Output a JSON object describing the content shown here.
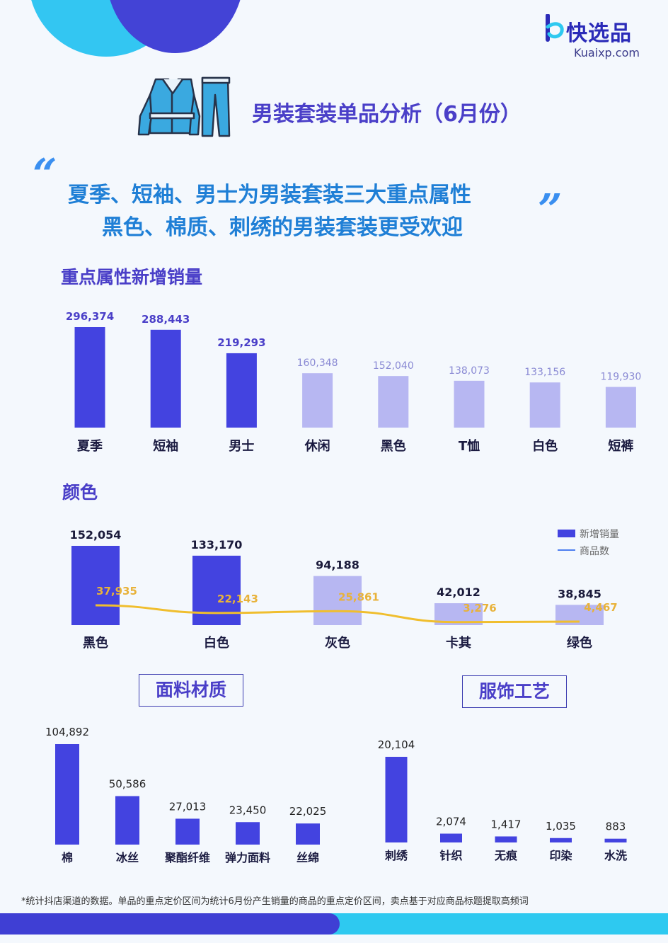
{
  "brand": {
    "name": "快选品",
    "url": "Kuaixp.com",
    "colors": {
      "primary": "#4343e0",
      "light": "#b7b7f2",
      "line": "#f0be2e",
      "headline": "#1f7fd6"
    }
  },
  "title": "男装套装单品分析（6月份）",
  "headline": {
    "line1": "夏季、短袖、男士为男装套装三大重点属性",
    "line2": "黑色、棉质、刺绣的男装套装更受欢迎",
    "open_quote": "“",
    "close_quote": "”"
  },
  "sections": {
    "attributes_title": "重点属性新增销量",
    "color_title": "颜色",
    "fabric_title": "面料材质",
    "craft_title": "服饰工艺"
  },
  "footnote": "*统计抖店渠道的数据。单品的重点定价区间为统计6月份产生销量的商品的重点定价区间，卖点基于对应商品标题提取高频词",
  "chart_data": [
    {
      "type": "bar",
      "title": "重点属性新增销量",
      "categories": [
        "夏季",
        "短袖",
        "男士",
        "休闲",
        "黑色",
        "T恤",
        "白色",
        "短裤"
      ],
      "values": [
        296374,
        288443,
        219293,
        160348,
        152040,
        138073,
        133156,
        119930
      ],
      "labels": [
        "296,374",
        "288,443",
        "219,293",
        "160,348",
        "152,040",
        "138,073",
        "133,156",
        "119,930"
      ],
      "highlight_count": 3,
      "ylim": [
        0,
        300000
      ]
    },
    {
      "type": "bar",
      "title": "颜色",
      "categories": [
        "黑色",
        "白色",
        "灰色",
        "卡其",
        "绿色"
      ],
      "series": [
        {
          "name": "新增销量",
          "type": "bar",
          "values": [
            152054,
            133170,
            94188,
            42012,
            38845
          ],
          "labels": [
            "152,054",
            "133,170",
            "94,188",
            "42,012",
            "38,845"
          ]
        },
        {
          "name": "商品数",
          "type": "line",
          "values": [
            37935,
            22143,
            25861,
            3276,
            4467
          ],
          "labels": [
            "37,935",
            "22,143",
            "25,861",
            "3,276",
            "4,467"
          ]
        }
      ],
      "highlight_count": 2,
      "legend": "top-right"
    },
    {
      "type": "bar",
      "title": "面料材质",
      "categories": [
        "棉",
        "冰丝",
        "聚酯纤维",
        "弹力面料",
        "丝绵"
      ],
      "values": [
        104892,
        50586,
        27013,
        23450,
        22025
      ],
      "labels": [
        "104,892",
        "50,586",
        "27,013",
        "23,450",
        "22,025"
      ]
    },
    {
      "type": "bar",
      "title": "服饰工艺",
      "categories": [
        "刺绣",
        "针织",
        "无痕",
        "印染",
        "水洗"
      ],
      "values": [
        20104,
        2074,
        1417,
        1035,
        883
      ],
      "labels": [
        "20,104",
        "2,074",
        "1,417",
        "1,035",
        "883"
      ]
    }
  ]
}
